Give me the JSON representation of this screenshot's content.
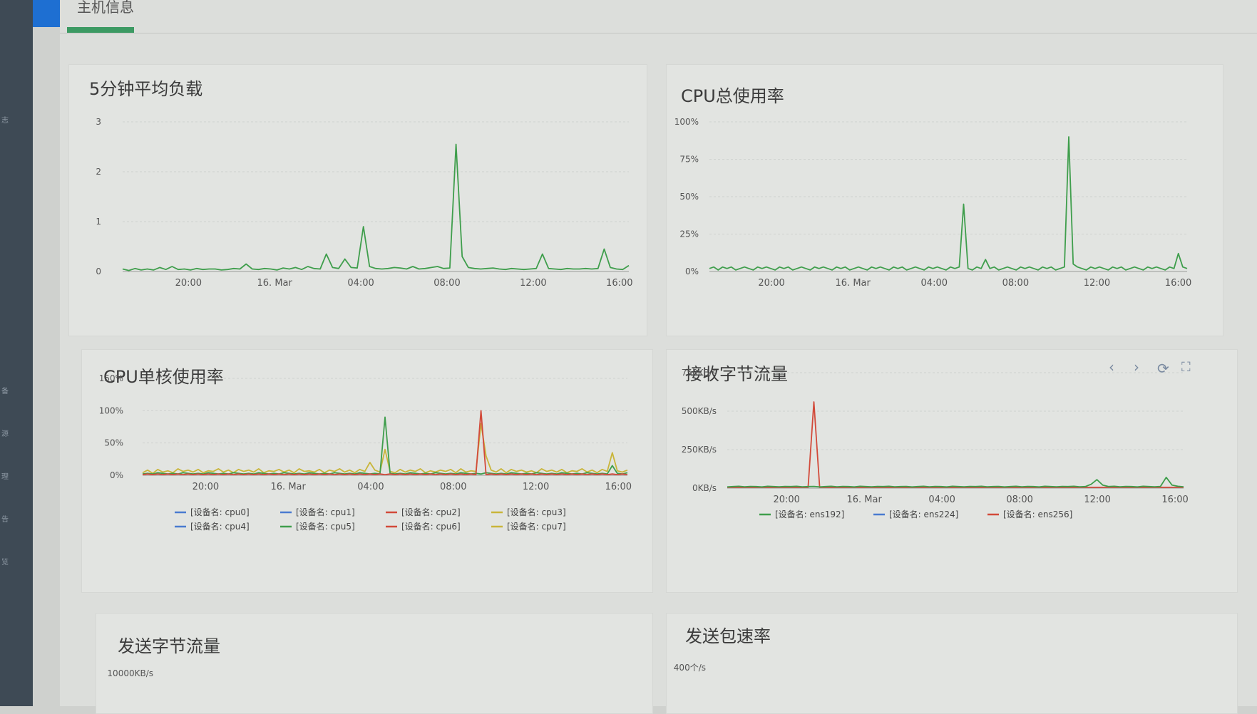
{
  "page": {
    "tab_title": "主机信息",
    "sidebar": [
      "志",
      "",
      "",
      "备",
      "源",
      "理",
      "告",
      "览"
    ]
  },
  "colors": {
    "green": "#3f9e4c",
    "yellow": "#c9b53a",
    "red": "#d24a3a",
    "blue": "#4a7bd0",
    "grid": "#cfd2cf",
    "axis": "#777"
  },
  "panels": {
    "load": {
      "title": "5分钟平均负载"
    },
    "cpu_total": {
      "title": "CPU总使用率"
    },
    "cpu_core": {
      "title": "CPU单核使用率"
    },
    "recv": {
      "title": "接收字节流量",
      "icons": [
        "chevron-left-icon",
        "chevron-right-icon",
        "refresh-icon",
        "fullscreen-icon"
      ]
    },
    "send": {
      "title": "发送字节流量"
    },
    "send_pkt": {
      "title": "发送包速率"
    }
  },
  "chart_data": [
    {
      "id": "load",
      "type": "line",
      "x_ticks": [
        "20:00",
        "16. Mar",
        "04:00",
        "08:00",
        "12:00",
        "16:00"
      ],
      "y_ticks": [
        "0",
        "1",
        "2",
        "3"
      ],
      "ylim": [
        0,
        3
      ],
      "series": [
        {
          "color": "green",
          "values": [
            0.05,
            0.02,
            0.06,
            0.03,
            0.05,
            0.03,
            0.08,
            0.04,
            0.1,
            0.04,
            0.05,
            0.03,
            0.06,
            0.04,
            0.05,
            0.05,
            0.03,
            0.04,
            0.06,
            0.05,
            0.15,
            0.05,
            0.04,
            0.06,
            0.05,
            0.03,
            0.07,
            0.05,
            0.08,
            0.04,
            0.1,
            0.06,
            0.05,
            0.35,
            0.08,
            0.06,
            0.25,
            0.08,
            0.07,
            0.9,
            0.1,
            0.06,
            0.05,
            0.06,
            0.08,
            0.07,
            0.05,
            0.1,
            0.05,
            0.06,
            0.08,
            0.1,
            0.06,
            0.07,
            2.55,
            0.3,
            0.08,
            0.06,
            0.05,
            0.06,
            0.07,
            0.05,
            0.04,
            0.06,
            0.05,
            0.04,
            0.05,
            0.06,
            0.35,
            0.06,
            0.05,
            0.04,
            0.06,
            0.05,
            0.05,
            0.06,
            0.05,
            0.06,
            0.45,
            0.08,
            0.05,
            0.04,
            0.12
          ]
        }
      ]
    },
    {
      "id": "cpu_total",
      "type": "line",
      "x_ticks": [
        "20:00",
        "16. Mar",
        "04:00",
        "08:00",
        "12:00",
        "16:00"
      ],
      "y_ticks": [
        "0%",
        "25%",
        "50%",
        "75%",
        "100%"
      ],
      "ylim": [
        0,
        100
      ],
      "series": [
        {
          "color": "green",
          "values": [
            2,
            3,
            1,
            3,
            2,
            3,
            1,
            2,
            3,
            2,
            1,
            3,
            2,
            3,
            2,
            1,
            3,
            2,
            3,
            1,
            2,
            3,
            2,
            1,
            3,
            2,
            3,
            2,
            1,
            3,
            2,
            3,
            1,
            2,
            3,
            2,
            1,
            3,
            2,
            3,
            2,
            1,
            3,
            2,
            3,
            1,
            2,
            3,
            2,
            1,
            3,
            2,
            3,
            2,
            1,
            3,
            2,
            3,
            45,
            2,
            1,
            3,
            2,
            8,
            2,
            3,
            1,
            2,
            3,
            2,
            1,
            3,
            2,
            3,
            2,
            1,
            3,
            2,
            3,
            1,
            2,
            3,
            90,
            5,
            3,
            2,
            1,
            3,
            2,
            3,
            2,
            1,
            3,
            2,
            3,
            1,
            2,
            3,
            2,
            1,
            3,
            2,
            3,
            2,
            1,
            3,
            2,
            12,
            3,
            2
          ]
        }
      ]
    },
    {
      "id": "cpu_core",
      "type": "line",
      "x_ticks": [
        "20:00",
        "16. Mar",
        "04:00",
        "08:00",
        "12:00",
        "16:00"
      ],
      "y_ticks": [
        "0%",
        "50%",
        "100%",
        "150%"
      ],
      "ylim": [
        0,
        150
      ],
      "legend": [
        "[设备名: cpu0]",
        "[设备名: cpu1]",
        "[设备名: cpu2]",
        "[设备名: cpu3]",
        "[设备名: cpu4]",
        "[设备名: cpu5]",
        "[设备名: cpu6]",
        "[设备名: cpu7]"
      ],
      "legend_colors": [
        "blue",
        "blue",
        "red",
        "yellow",
        "blue",
        "green",
        "red",
        "yellow"
      ],
      "series": [
        {
          "name": "[设备名: cpu3]",
          "color": "yellow",
          "values": [
            4,
            8,
            3,
            9,
            5,
            7,
            4,
            10,
            6,
            8,
            5,
            9,
            4,
            7,
            6,
            10,
            5,
            8,
            4,
            9,
            6,
            8,
            5,
            10,
            4,
            7,
            6,
            9,
            5,
            8,
            4,
            10,
            6,
            7,
            5,
            9,
            4,
            8,
            6,
            10,
            5,
            8,
            4,
            9,
            6,
            20,
            8,
            5,
            40,
            6,
            4,
            9,
            5,
            8,
            6,
            10,
            4,
            7,
            5,
            8,
            6,
            9,
            4,
            10,
            5,
            7,
            6,
            80,
            30,
            8,
            5,
            10,
            4,
            9,
            6,
            8,
            5,
            7,
            4,
            10,
            6,
            8,
            5,
            9,
            4,
            7,
            6,
            10,
            5,
            8,
            4,
            9,
            6,
            35,
            7,
            5,
            8
          ]
        },
        {
          "name": "[设备名: cpu0]",
          "color": "green",
          "values": [
            2,
            3,
            2,
            4,
            3,
            2,
            3,
            2,
            4,
            3,
            2,
            3,
            2,
            4,
            3,
            2,
            3,
            2,
            4,
            3,
            2,
            3,
            2,
            4,
            3,
            2,
            3,
            2,
            4,
            3,
            2,
            3,
            2,
            4,
            3,
            2,
            3,
            2,
            4,
            3,
            2,
            3,
            2,
            4,
            3,
            2,
            3,
            2,
            90,
            3,
            2,
            3,
            2,
            4,
            3,
            2,
            3,
            2,
            4,
            3,
            2,
            3,
            2,
            4,
            3,
            2,
            3,
            2,
            4,
            3,
            2,
            3,
            2,
            4,
            3,
            2,
            3,
            2,
            4,
            3,
            2,
            3,
            2,
            4,
            3,
            2,
            3,
            2,
            4,
            3,
            2,
            3,
            2,
            15,
            3,
            2,
            4
          ]
        },
        {
          "name": "[设备名: cpu2]",
          "color": "red",
          "values": [
            1,
            2,
            1,
            2,
            1,
            2,
            1,
            2,
            1,
            2,
            1,
            2,
            1,
            2,
            1,
            2,
            1,
            2,
            1,
            2,
            1,
            2,
            1,
            2,
            1,
            2,
            1,
            2,
            1,
            2,
            1,
            2,
            1,
            2,
            1,
            2,
            1,
            2,
            1,
            2,
            1,
            2,
            1,
            2,
            1,
            2,
            1,
            2,
            1,
            2,
            1,
            2,
            1,
            2,
            1,
            2,
            1,
            2,
            1,
            2,
            1,
            2,
            1,
            2,
            1,
            2,
            1,
            100,
            1,
            2,
            1,
            2,
            1,
            2,
            1,
            2,
            1,
            2,
            1,
            2,
            1,
            2,
            1,
            2,
            1,
            2,
            1,
            2,
            1,
            2,
            1,
            2,
            1,
            2,
            1,
            2,
            1
          ]
        }
      ]
    },
    {
      "id": "recv",
      "type": "line",
      "x_ticks": [
        "20:00",
        "16. Mar",
        "04:00",
        "08:00",
        "12:00",
        "16:00"
      ],
      "y_ticks": [
        "0KB/s",
        "250KB/s",
        "500KB/s",
        "750KB/s"
      ],
      "ylim": [
        0,
        750
      ],
      "legend": [
        "[设备名: ens192]",
        "[设备名: ens224]",
        "[设备名: ens256]"
      ],
      "legend_colors": [
        "green",
        "blue",
        "red"
      ],
      "series": [
        {
          "name": "[设备名: ens256]",
          "color": "red",
          "values": [
            5,
            5,
            5,
            5,
            5,
            5,
            5,
            5,
            5,
            5,
            5,
            5,
            5,
            5,
            5,
            560,
            5,
            5,
            5,
            5,
            5,
            5,
            5,
            5,
            5,
            5,
            5,
            5,
            5,
            5,
            5,
            5,
            5,
            5,
            5,
            5,
            5,
            5,
            5,
            5,
            5,
            5,
            5,
            5,
            5,
            5,
            5,
            5,
            5,
            5,
            5,
            5,
            5,
            5,
            5,
            5,
            5,
            5,
            5,
            5,
            5,
            5,
            5,
            5,
            5,
            5,
            5,
            5,
            5,
            5,
            5,
            5,
            5,
            5,
            5,
            5,
            5,
            5,
            5,
            5
          ]
        },
        {
          "name": "[设备名: ens192]",
          "color": "green",
          "values": [
            8,
            10,
            12,
            9,
            11,
            10,
            8,
            12,
            10,
            9,
            11,
            10,
            12,
            9,
            10,
            11,
            8,
            10,
            12,
            9,
            11,
            10,
            8,
            12,
            10,
            9,
            11,
            10,
            12,
            9,
            10,
            11,
            8,
            10,
            12,
            9,
            11,
            10,
            8,
            12,
            10,
            9,
            11,
            10,
            12,
            9,
            10,
            11,
            8,
            10,
            12,
            9,
            11,
            10,
            8,
            12,
            10,
            9,
            11,
            10,
            12,
            9,
            10,
            25,
            55,
            20,
            10,
            12,
            9,
            11,
            10,
            8,
            12,
            10,
            9,
            11,
            70,
            20,
            12,
            9
          ]
        }
      ]
    },
    {
      "id": "send",
      "type": "line",
      "y_ticks": [
        "10000KB/s"
      ],
      "series": []
    },
    {
      "id": "send_pkt",
      "type": "line",
      "y_ticks": [
        "400个/s"
      ],
      "series": []
    }
  ]
}
